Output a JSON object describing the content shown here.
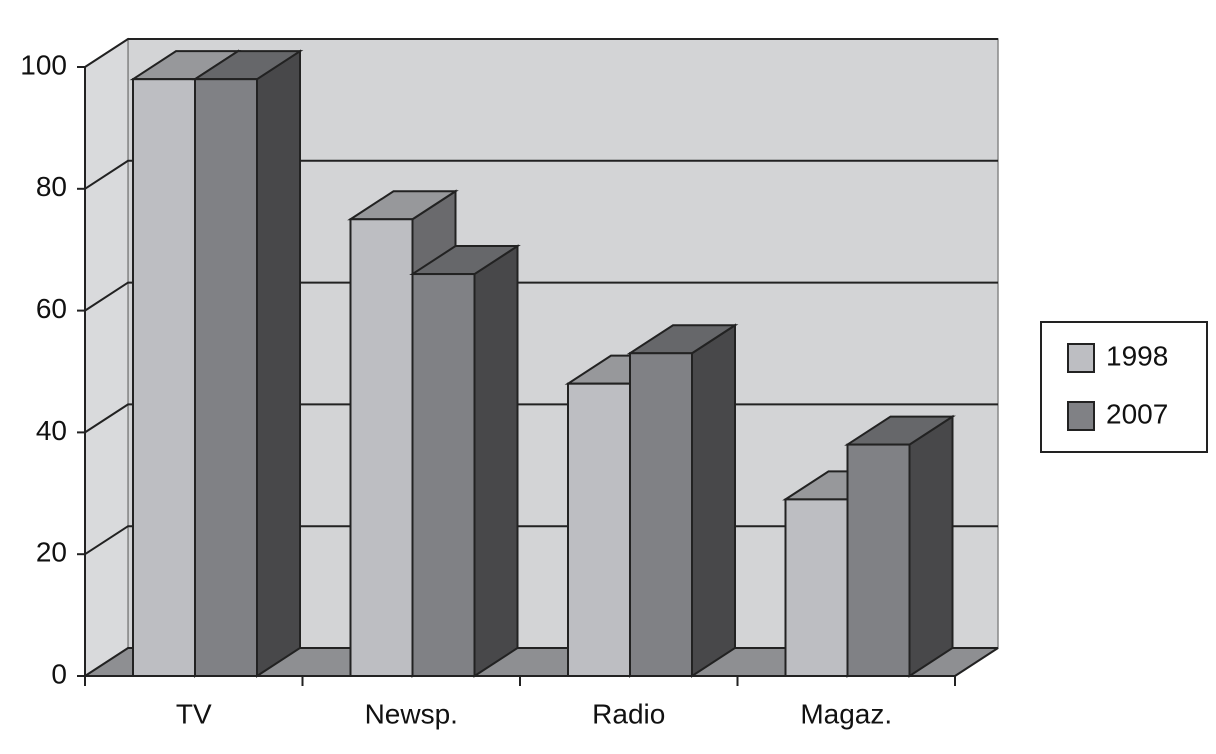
{
  "chart_data": {
    "type": "bar3d",
    "categories": [
      "TV",
      "Newsp.",
      "Radio",
      "Magaz."
    ],
    "series": [
      {
        "name": "1998",
        "color": "#bdbec2",
        "values": [
          98,
          75,
          48,
          29
        ]
      },
      {
        "name": "2007",
        "color": "#808185",
        "values": [
          98,
          66,
          53,
          38
        ]
      }
    ],
    "ylim": [
      0,
      100
    ],
    "yticks": [
      0,
      20,
      40,
      60,
      80,
      100
    ],
    "grid": true,
    "legend": "right"
  }
}
